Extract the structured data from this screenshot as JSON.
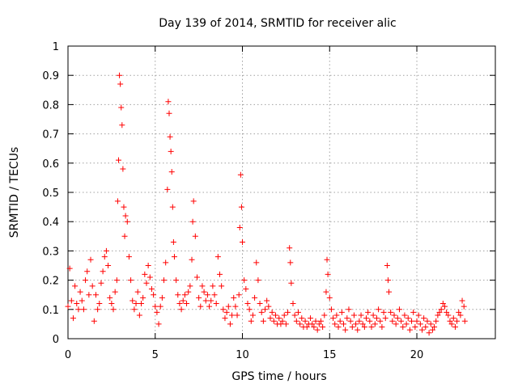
{
  "chart_data": {
    "type": "scatter",
    "title": "Day 139 of 2014, SRMTID for receiver alic",
    "xlabel": "GPS time / hours",
    "ylabel": "SRMTID / TECUs",
    "xlim": [
      0,
      24.5
    ],
    "ylim": [
      0,
      1
    ],
    "xticks": [
      0,
      5,
      10,
      15,
      20
    ],
    "xtick_labels": [
      "0",
      "5",
      "10",
      "15",
      "20"
    ],
    "yticks": [
      0,
      0.1,
      0.2,
      0.3,
      0.4,
      0.5,
      0.6,
      0.7,
      0.8,
      0.9,
      1
    ],
    "ytick_labels": [
      "0",
      "0.1",
      "0.2",
      "0.3",
      "0.4",
      "0.5",
      "0.6",
      "0.7",
      "0.8",
      "0.9",
      "1"
    ],
    "grid": true,
    "marker": "+",
    "color": "#ff0000",
    "series": [
      {
        "name": "SRMTID",
        "points": [
          [
            0.0,
            0.11
          ],
          [
            0.1,
            0.24
          ],
          [
            0.2,
            0.13
          ],
          [
            0.3,
            0.07
          ],
          [
            0.4,
            0.18
          ],
          [
            0.5,
            0.12
          ],
          [
            0.6,
            0.1
          ],
          [
            0.7,
            0.16
          ],
          [
            0.8,
            0.13
          ],
          [
            0.9,
            0.1
          ],
          [
            1.0,
            0.2
          ],
          [
            1.1,
            0.23
          ],
          [
            1.2,
            0.15
          ],
          [
            1.3,
            0.27
          ],
          [
            1.4,
            0.18
          ],
          [
            1.5,
            0.06
          ],
          [
            1.6,
            0.15
          ],
          [
            1.7,
            0.1
          ],
          [
            1.8,
            0.12
          ],
          [
            1.9,
            0.19
          ],
          [
            2.0,
            0.23
          ],
          [
            2.1,
            0.28
          ],
          [
            2.2,
            0.3
          ],
          [
            2.3,
            0.25
          ],
          [
            2.4,
            0.14
          ],
          [
            2.5,
            0.12
          ],
          [
            2.6,
            0.1
          ],
          [
            2.7,
            0.16
          ],
          [
            2.8,
            0.2
          ],
          [
            2.85,
            0.47
          ],
          [
            2.9,
            0.61
          ],
          [
            2.95,
            0.9
          ],
          [
            3.0,
            0.87
          ],
          [
            3.05,
            0.79
          ],
          [
            3.1,
            0.73
          ],
          [
            3.15,
            0.58
          ],
          [
            3.2,
            0.45
          ],
          [
            3.25,
            0.35
          ],
          [
            3.3,
            0.42
          ],
          [
            3.4,
            0.4
          ],
          [
            3.5,
            0.28
          ],
          [
            3.6,
            0.2
          ],
          [
            3.7,
            0.13
          ],
          [
            3.8,
            0.1
          ],
          [
            3.9,
            0.12
          ],
          [
            4.0,
            0.16
          ],
          [
            4.1,
            0.08
          ],
          [
            4.2,
            0.12
          ],
          [
            4.3,
            0.14
          ],
          [
            4.4,
            0.22
          ],
          [
            4.5,
            0.19
          ],
          [
            4.6,
            0.25
          ],
          [
            4.7,
            0.21
          ],
          [
            4.8,
            0.17
          ],
          [
            4.9,
            0.15
          ],
          [
            5.0,
            0.11
          ],
          [
            5.1,
            0.09
          ],
          [
            5.2,
            0.05
          ],
          [
            5.3,
            0.11
          ],
          [
            5.4,
            0.14
          ],
          [
            5.5,
            0.2
          ],
          [
            5.6,
            0.26
          ],
          [
            5.7,
            0.51
          ],
          [
            5.75,
            0.81
          ],
          [
            5.8,
            0.77
          ],
          [
            5.85,
            0.69
          ],
          [
            5.9,
            0.64
          ],
          [
            5.95,
            0.57
          ],
          [
            6.0,
            0.45
          ],
          [
            6.05,
            0.33
          ],
          [
            6.1,
            0.28
          ],
          [
            6.2,
            0.2
          ],
          [
            6.3,
            0.15
          ],
          [
            6.4,
            0.12
          ],
          [
            6.5,
            0.1
          ],
          [
            6.6,
            0.13
          ],
          [
            6.7,
            0.15
          ],
          [
            6.8,
            0.12
          ],
          [
            6.9,
            0.16
          ],
          [
            7.0,
            0.18
          ],
          [
            7.1,
            0.27
          ],
          [
            7.15,
            0.4
          ],
          [
            7.2,
            0.47
          ],
          [
            7.3,
            0.35
          ],
          [
            7.4,
            0.21
          ],
          [
            7.5,
            0.14
          ],
          [
            7.6,
            0.11
          ],
          [
            7.7,
            0.18
          ],
          [
            7.8,
            0.16
          ],
          [
            7.9,
            0.13
          ],
          [
            8.0,
            0.15
          ],
          [
            8.1,
            0.11
          ],
          [
            8.2,
            0.13
          ],
          [
            8.3,
            0.18
          ],
          [
            8.4,
            0.15
          ],
          [
            8.5,
            0.12
          ],
          [
            8.6,
            0.28
          ],
          [
            8.7,
            0.22
          ],
          [
            8.8,
            0.18
          ],
          [
            8.9,
            0.1
          ],
          [
            9.0,
            0.07
          ],
          [
            9.1,
            0.09
          ],
          [
            9.2,
            0.11
          ],
          [
            9.3,
            0.05
          ],
          [
            9.4,
            0.08
          ],
          [
            9.5,
            0.14
          ],
          [
            9.6,
            0.11
          ],
          [
            9.7,
            0.08
          ],
          [
            9.8,
            0.15
          ],
          [
            9.85,
            0.38
          ],
          [
            9.9,
            0.56
          ],
          [
            9.95,
            0.45
          ],
          [
            10.0,
            0.33
          ],
          [
            10.1,
            0.2
          ],
          [
            10.2,
            0.17
          ],
          [
            10.3,
            0.12
          ],
          [
            10.4,
            0.1
          ],
          [
            10.5,
            0.06
          ],
          [
            10.6,
            0.08
          ],
          [
            10.7,
            0.14
          ],
          [
            10.8,
            0.26
          ],
          [
            10.9,
            0.2
          ],
          [
            11.0,
            0.12
          ],
          [
            11.1,
            0.09
          ],
          [
            11.2,
            0.06
          ],
          [
            11.3,
            0.1
          ],
          [
            11.4,
            0.13
          ],
          [
            11.5,
            0.11
          ],
          [
            11.6,
            0.07
          ],
          [
            11.7,
            0.09
          ],
          [
            11.8,
            0.06
          ],
          [
            11.9,
            0.08
          ],
          [
            12.0,
            0.05
          ],
          [
            12.1,
            0.07
          ],
          [
            12.2,
            0.05
          ],
          [
            12.3,
            0.06
          ],
          [
            12.4,
            0.08
          ],
          [
            12.5,
            0.05
          ],
          [
            12.6,
            0.09
          ],
          [
            12.7,
            0.31
          ],
          [
            12.75,
            0.26
          ],
          [
            12.8,
            0.19
          ],
          [
            12.9,
            0.12
          ],
          [
            13.0,
            0.08
          ],
          [
            13.1,
            0.06
          ],
          [
            13.2,
            0.09
          ],
          [
            13.3,
            0.05
          ],
          [
            13.4,
            0.07
          ],
          [
            13.5,
            0.04
          ],
          [
            13.6,
            0.06
          ],
          [
            13.7,
            0.04
          ],
          [
            13.8,
            0.05
          ],
          [
            13.9,
            0.07
          ],
          [
            14.0,
            0.05
          ],
          [
            14.1,
            0.04
          ],
          [
            14.2,
            0.06
          ],
          [
            14.3,
            0.03
          ],
          [
            14.4,
            0.05
          ],
          [
            14.5,
            0.06
          ],
          [
            14.6,
            0.04
          ],
          [
            14.7,
            0.08
          ],
          [
            14.8,
            0.16
          ],
          [
            14.85,
            0.27
          ],
          [
            14.9,
            0.22
          ],
          [
            15.0,
            0.14
          ],
          [
            15.1,
            0.1
          ],
          [
            15.2,
            0.07
          ],
          [
            15.3,
            0.05
          ],
          [
            15.4,
            0.08
          ],
          [
            15.5,
            0.04
          ],
          [
            15.6,
            0.06
          ],
          [
            15.7,
            0.09
          ],
          [
            15.8,
            0.05
          ],
          [
            15.9,
            0.03
          ],
          [
            16.0,
            0.07
          ],
          [
            16.1,
            0.1
          ],
          [
            16.2,
            0.06
          ],
          [
            16.3,
            0.04
          ],
          [
            16.4,
            0.08
          ],
          [
            16.5,
            0.05
          ],
          [
            16.6,
            0.03
          ],
          [
            16.7,
            0.06
          ],
          [
            16.8,
            0.08
          ],
          [
            16.9,
            0.05
          ],
          [
            17.0,
            0.04
          ],
          [
            17.1,
            0.07
          ],
          [
            17.2,
            0.09
          ],
          [
            17.3,
            0.06
          ],
          [
            17.4,
            0.04
          ],
          [
            17.5,
            0.08
          ],
          [
            17.6,
            0.05
          ],
          [
            17.7,
            0.07
          ],
          [
            17.8,
            0.1
          ],
          [
            17.9,
            0.06
          ],
          [
            18.0,
            0.04
          ],
          [
            18.1,
            0.09
          ],
          [
            18.2,
            0.07
          ],
          [
            18.3,
            0.25
          ],
          [
            18.35,
            0.2
          ],
          [
            18.4,
            0.16
          ],
          [
            18.5,
            0.09
          ],
          [
            18.6,
            0.06
          ],
          [
            18.7,
            0.08
          ],
          [
            18.8,
            0.05
          ],
          [
            18.9,
            0.07
          ],
          [
            19.0,
            0.1
          ],
          [
            19.1,
            0.06
          ],
          [
            19.2,
            0.04
          ],
          [
            19.3,
            0.08
          ],
          [
            19.4,
            0.05
          ],
          [
            19.5,
            0.07
          ],
          [
            19.6,
            0.03
          ],
          [
            19.7,
            0.06
          ],
          [
            19.8,
            0.09
          ],
          [
            19.9,
            0.04
          ],
          [
            20.0,
            0.06
          ],
          [
            20.1,
            0.08
          ],
          [
            20.2,
            0.05
          ],
          [
            20.3,
            0.03
          ],
          [
            20.4,
            0.07
          ],
          [
            20.5,
            0.04
          ],
          [
            20.6,
            0.06
          ],
          [
            20.7,
            0.02
          ],
          [
            20.8,
            0.05
          ],
          [
            20.9,
            0.03
          ],
          [
            21.0,
            0.04
          ],
          [
            21.1,
            0.06
          ],
          [
            21.2,
            0.08
          ],
          [
            21.3,
            0.09
          ],
          [
            21.4,
            0.1
          ],
          [
            21.5,
            0.12
          ],
          [
            21.6,
            0.11
          ],
          [
            21.7,
            0.09
          ],
          [
            21.8,
            0.08
          ],
          [
            21.9,
            0.06
          ],
          [
            22.0,
            0.05
          ],
          [
            22.1,
            0.07
          ],
          [
            22.2,
            0.04
          ],
          [
            22.3,
            0.06
          ],
          [
            22.4,
            0.09
          ],
          [
            22.5,
            0.08
          ],
          [
            22.6,
            0.13
          ],
          [
            22.7,
            0.11
          ],
          [
            22.75,
            0.06
          ]
        ]
      }
    ]
  }
}
